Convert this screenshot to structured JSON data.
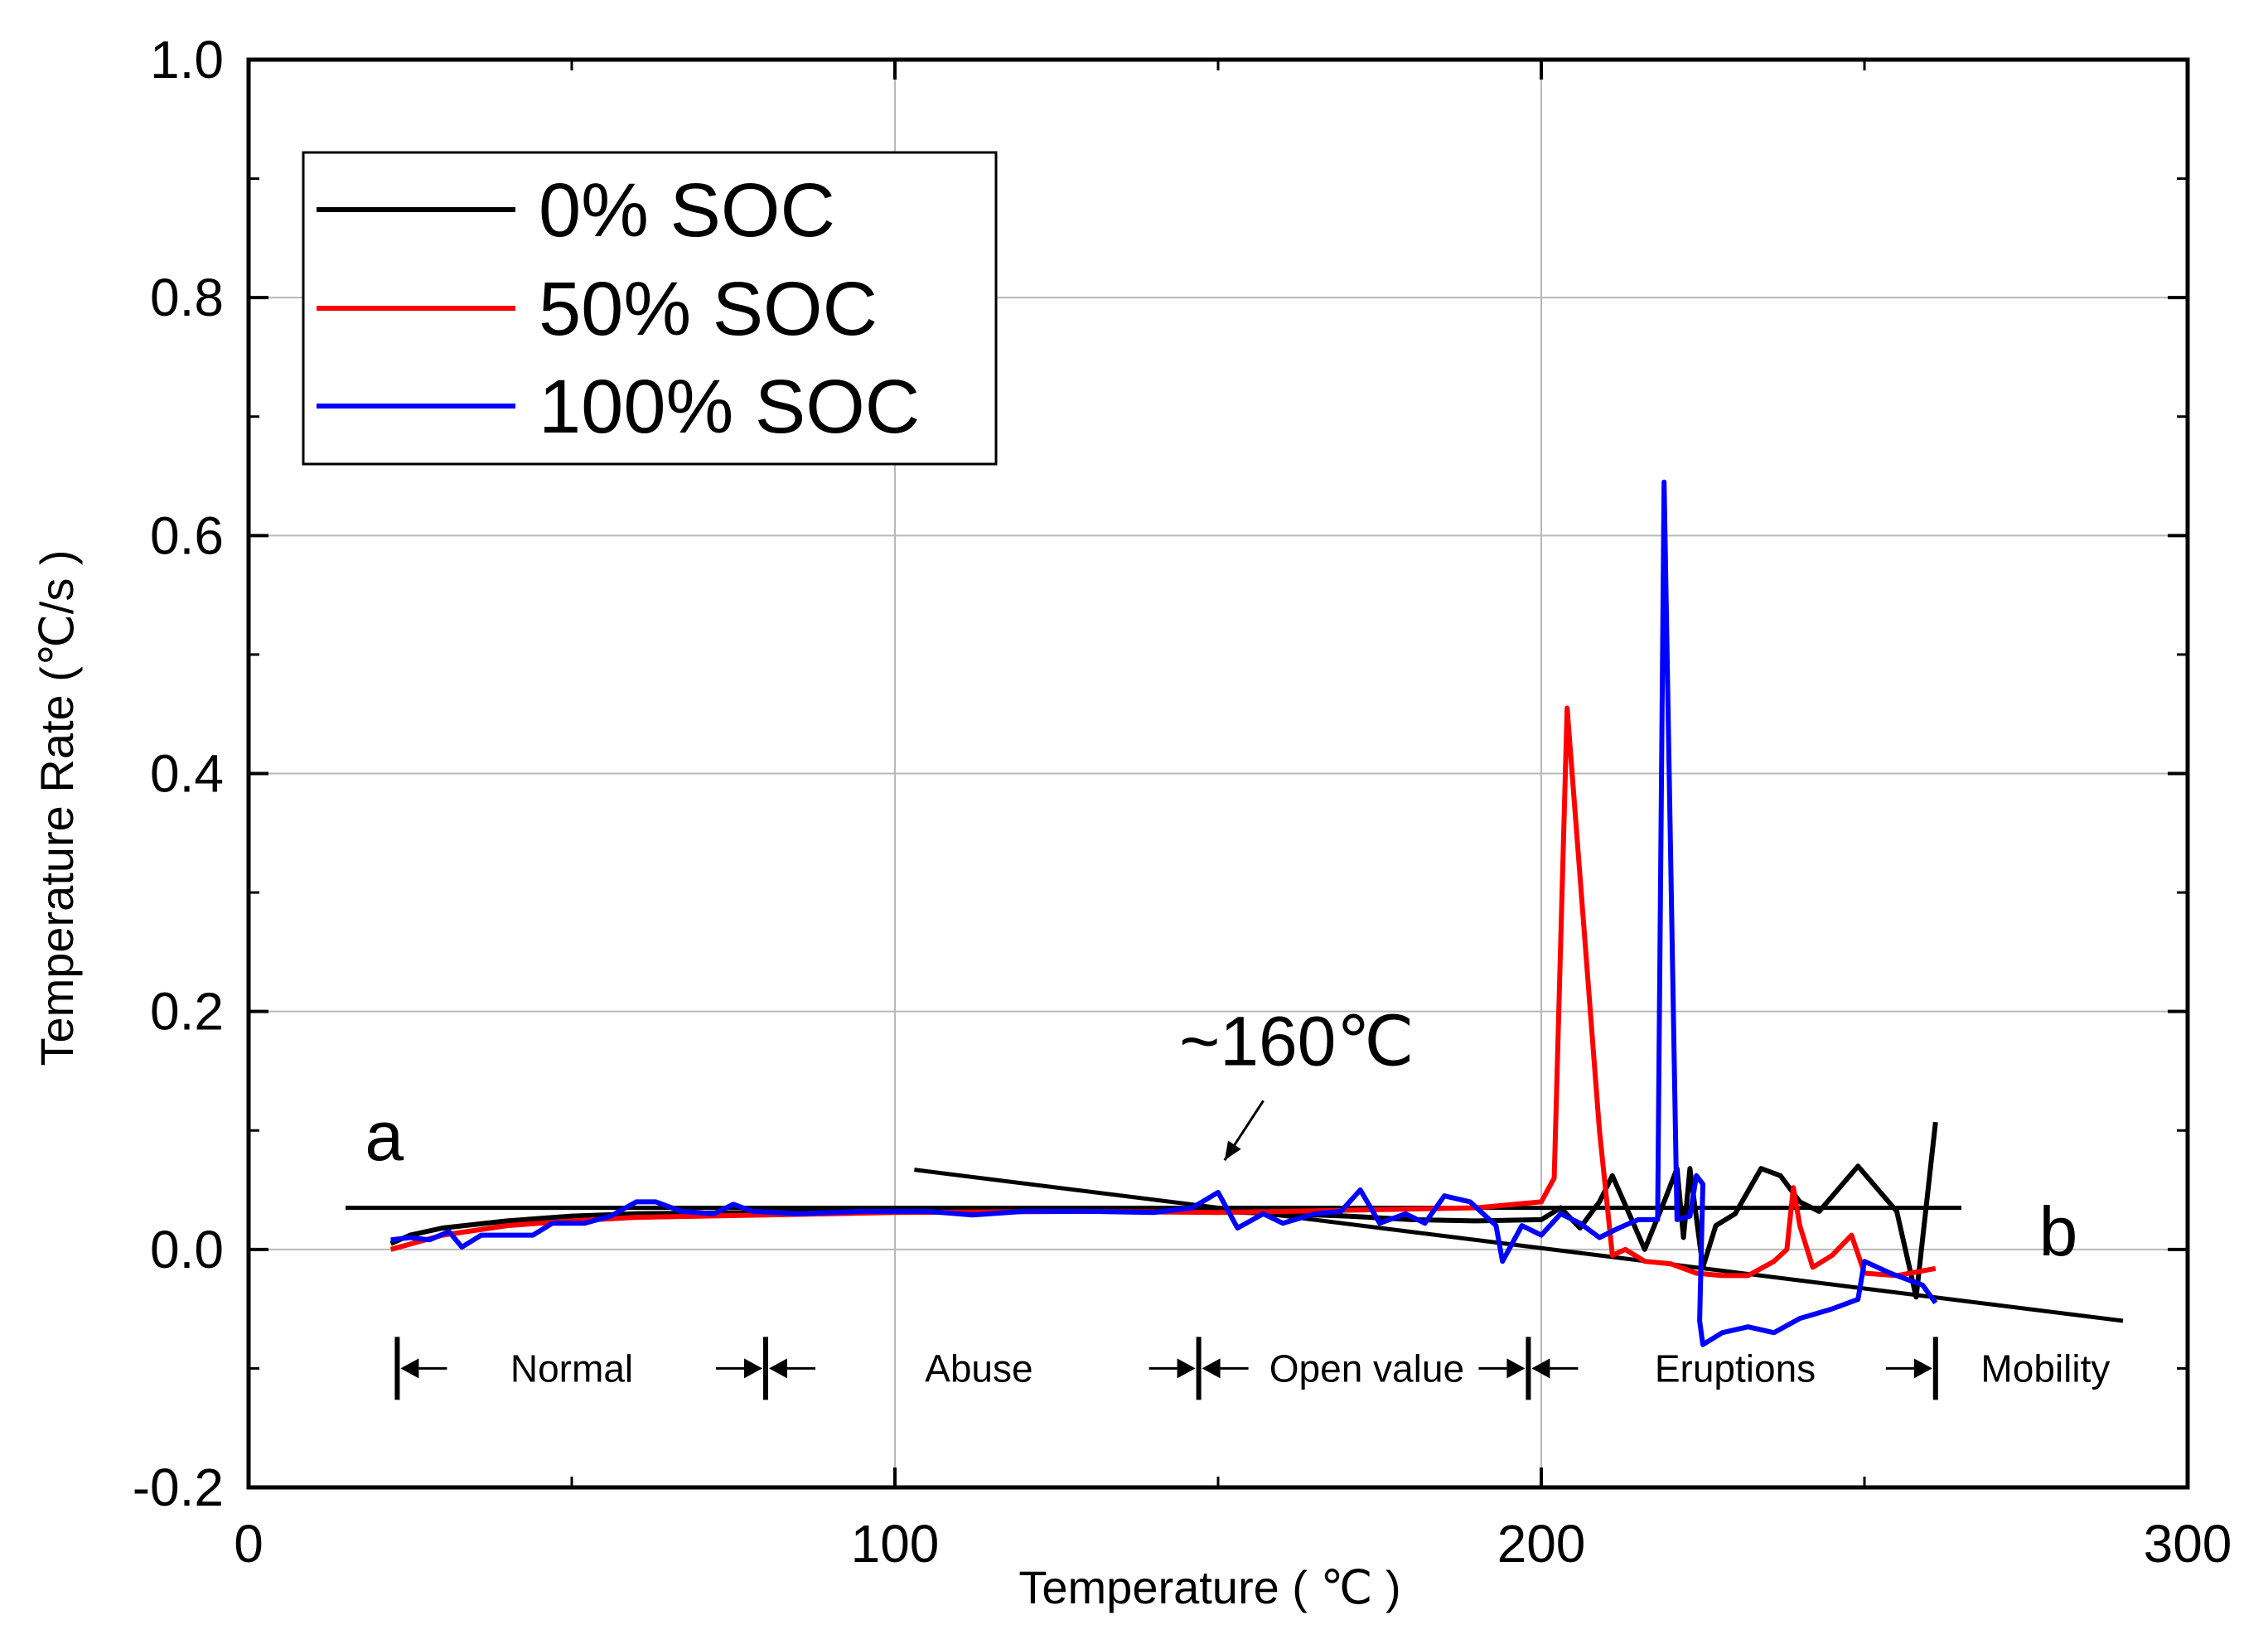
{
  "chart_data": {
    "type": "line",
    "xlabel": "Temperature ( ℃ )",
    "ylabel": "Temperature Rate (℃/s )",
    "xlim": [
      0,
      300
    ],
    "ylim": [
      -0.2,
      1.0
    ],
    "xticks": [
      0,
      100,
      200,
      300
    ],
    "xtick_labels": [
      "0",
      "100",
      "200",
      "300"
    ],
    "yticks": [
      -0.2,
      0.0,
      0.2,
      0.4,
      0.6,
      0.8,
      1.0
    ],
    "ytick_labels": [
      "-0.2",
      "0.0",
      "0.2",
      "0.4",
      "0.6",
      "0.8",
      "1.0"
    ],
    "grid": true,
    "legend_position": "top-left",
    "series": [
      {
        "name": "0% SOC",
        "color": "#000000",
        "points": [
          [
            22,
            0.005
          ],
          [
            25,
            0.012
          ],
          [
            30,
            0.018
          ],
          [
            40,
            0.024
          ],
          [
            50,
            0.028
          ],
          [
            60,
            0.03
          ],
          [
            80,
            0.031
          ],
          [
            100,
            0.032
          ],
          [
            130,
            0.033
          ],
          [
            150,
            0.032
          ],
          [
            160,
            0.03
          ],
          [
            170,
            0.028
          ],
          [
            180,
            0.025
          ],
          [
            190,
            0.024
          ],
          [
            200,
            0.025
          ],
          [
            203,
            0.035
          ],
          [
            206,
            0.018
          ],
          [
            209,
            0.04
          ],
          [
            211,
            0.062
          ],
          [
            214,
            0.025
          ],
          [
            216,
            0.0
          ],
          [
            219,
            0.04
          ],
          [
            221,
            0.068
          ],
          [
            222,
            0.01
          ],
          [
            223,
            0.068
          ],
          [
            225,
            -0.015
          ],
          [
            227,
            0.02
          ],
          [
            230,
            0.03
          ],
          [
            234,
            0.068
          ],
          [
            237,
            0.062
          ],
          [
            240,
            0.04
          ],
          [
            243,
            0.032
          ],
          [
            249,
            0.07
          ],
          [
            255,
            0.032
          ],
          [
            258,
            -0.04
          ],
          [
            261,
            0.107
          ]
        ]
      },
      {
        "name": "50% SOC",
        "color": "#ff0000",
        "points": [
          [
            22,
            0.0
          ],
          [
            30,
            0.012
          ],
          [
            40,
            0.02
          ],
          [
            50,
            0.024
          ],
          [
            60,
            0.027
          ],
          [
            80,
            0.029
          ],
          [
            100,
            0.031
          ],
          [
            130,
            0.032
          ],
          [
            150,
            0.031
          ],
          [
            170,
            0.033
          ],
          [
            190,
            0.035
          ],
          [
            200,
            0.04
          ],
          [
            202,
            0.06
          ],
          [
            204,
            0.455
          ],
          [
            209,
            0.1
          ],
          [
            211,
            -0.005
          ],
          [
            213,
            0.0
          ],
          [
            216,
            -0.01
          ],
          [
            220,
            -0.012
          ],
          [
            224,
            -0.02
          ],
          [
            228,
            -0.022
          ],
          [
            232,
            -0.022
          ],
          [
            236,
            -0.01
          ],
          [
            238,
            0.0
          ],
          [
            239,
            0.052
          ],
          [
            240,
            0.02
          ],
          [
            242,
            -0.015
          ],
          [
            245,
            -0.005
          ],
          [
            248,
            0.012
          ],
          [
            250,
            -0.02
          ],
          [
            255,
            -0.022
          ],
          [
            259,
            -0.018
          ],
          [
            261,
            -0.016
          ]
        ]
      },
      {
        "name": "100% SOC",
        "color": "#0000ff",
        "points": [
          [
            22,
            0.008
          ],
          [
            25,
            0.01
          ],
          [
            28,
            0.008
          ],
          [
            31,
            0.015
          ],
          [
            33,
            0.002
          ],
          [
            36,
            0.012
          ],
          [
            40,
            0.012
          ],
          [
            44,
            0.012
          ],
          [
            47,
            0.022
          ],
          [
            52,
            0.022
          ],
          [
            56,
            0.028
          ],
          [
            60,
            0.04
          ],
          [
            63,
            0.04
          ],
          [
            67,
            0.032
          ],
          [
            72,
            0.03
          ],
          [
            75,
            0.038
          ],
          [
            78,
            0.032
          ],
          [
            85,
            0.03
          ],
          [
            95,
            0.032
          ],
          [
            105,
            0.032
          ],
          [
            112,
            0.029
          ],
          [
            120,
            0.032
          ],
          [
            130,
            0.032
          ],
          [
            140,
            0.031
          ],
          [
            146,
            0.035
          ],
          [
            150,
            0.048
          ],
          [
            153,
            0.018
          ],
          [
            157,
            0.03
          ],
          [
            160,
            0.022
          ],
          [
            165,
            0.03
          ],
          [
            169,
            0.032
          ],
          [
            172,
            0.05
          ],
          [
            175,
            0.022
          ],
          [
            179,
            0.03
          ],
          [
            182,
            0.022
          ],
          [
            185,
            0.045
          ],
          [
            189,
            0.04
          ],
          [
            193,
            0.02
          ],
          [
            194,
            -0.01
          ],
          [
            197,
            0.02
          ],
          [
            200,
            0.012
          ],
          [
            203,
            0.03
          ],
          [
            206,
            0.022
          ],
          [
            209,
            0.01
          ],
          [
            212,
            0.018
          ],
          [
            215,
            0.025
          ],
          [
            218,
            0.025
          ],
          [
            219,
            0.645
          ],
          [
            221,
            0.025
          ],
          [
            223,
            0.028
          ],
          [
            224,
            0.062
          ],
          [
            225,
            0.055
          ],
          [
            224.5,
            -0.06
          ],
          [
            225,
            -0.08
          ],
          [
            228,
            -0.07
          ],
          [
            232,
            -0.065
          ],
          [
            236,
            -0.07
          ],
          [
            240,
            -0.058
          ],
          [
            245,
            -0.05
          ],
          [
            249,
            -0.042
          ],
          [
            250,
            -0.01
          ],
          [
            254,
            -0.02
          ],
          [
            259,
            -0.03
          ],
          [
            261,
            -0.045
          ]
        ]
      }
    ],
    "reference_lines": [
      {
        "name": "a",
        "color": "#000000",
        "points": [
          [
            15,
            0.035
          ],
          [
            265,
            0.035
          ]
        ]
      },
      {
        "name": "b",
        "color": "#000000",
        "points": [
          [
            103,
            0.067
          ],
          [
            290,
            -0.06
          ]
        ]
      }
    ],
    "annotations": {
      "onset_label": "~160℃",
      "onset_arrow_from": [
        157,
        0.125
      ],
      "onset_arrow_to": [
        151,
        0.075
      ],
      "line_a_label": "a",
      "line_a_at": [
        18,
        0.075
      ],
      "line_b_label": "b",
      "line_b_at": [
        277,
        -0.005
      ]
    },
    "phases": {
      "y": -0.1,
      "boundaries": [
        23,
        80,
        147,
        198,
        261
      ],
      "labels": [
        {
          "text": "Normal",
          "x": 50
        },
        {
          "text": "Abuse",
          "x": 113
        },
        {
          "text": "Open value",
          "x": 173
        },
        {
          "text": "Eruptions",
          "x": 230
        },
        {
          "text": "Mobility",
          "x": 278
        }
      ]
    }
  }
}
